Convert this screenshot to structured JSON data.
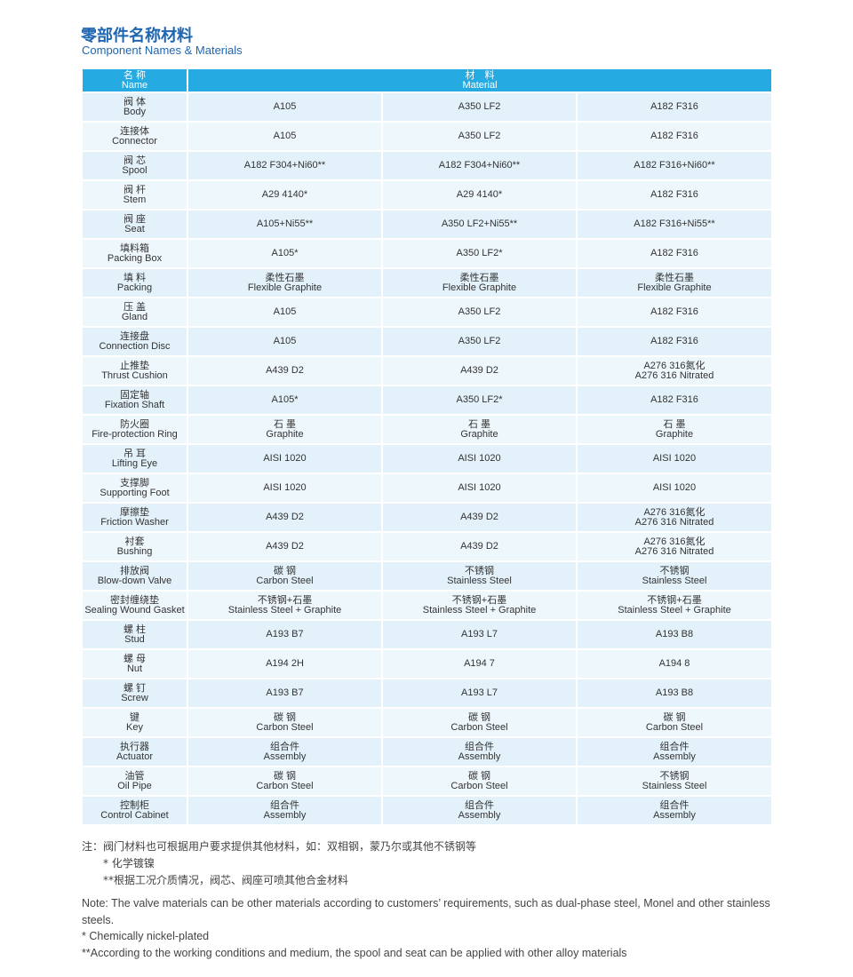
{
  "header": {
    "title": "零部件名称材料",
    "subtitle": "Component Names & Materials"
  },
  "table": {
    "head": {
      "name": [
        "名 称",
        "Name"
      ],
      "material": [
        "材　料",
        "Material"
      ]
    },
    "rows": [
      {
        "name": [
          "阀 体",
          "Body"
        ],
        "cells": [
          [
            "A105"
          ],
          [
            "A350 LF2"
          ],
          [
            "A182 F316"
          ]
        ]
      },
      {
        "name": [
          "连接体",
          "Connector"
        ],
        "cells": [
          [
            "A105"
          ],
          [
            "A350 LF2"
          ],
          [
            "A182 F316"
          ]
        ]
      },
      {
        "name": [
          "阀 芯",
          "Spool"
        ],
        "cells": [
          [
            "A182 F304+Ni60**"
          ],
          [
            "A182 F304+Ni60**"
          ],
          [
            "A182 F316+Ni60**"
          ]
        ]
      },
      {
        "name": [
          "阀 杆",
          "Stem"
        ],
        "cells": [
          [
            "A29 4140*"
          ],
          [
            "A29 4140*"
          ],
          [
            "A182 F316"
          ]
        ]
      },
      {
        "name": [
          "阀 座",
          "Seat"
        ],
        "cells": [
          [
            "A105+Ni55**"
          ],
          [
            "A350 LF2+Ni55**"
          ],
          [
            "A182 F316+Ni55**"
          ]
        ]
      },
      {
        "name": [
          "填料箱",
          "Packing Box"
        ],
        "cells": [
          [
            "A105*"
          ],
          [
            "A350 LF2*"
          ],
          [
            "A182 F316"
          ]
        ]
      },
      {
        "name": [
          "填 料",
          "Packing"
        ],
        "cells": [
          [
            "柔性石墨",
            "Flexible Graphite"
          ],
          [
            "柔性石墨",
            "Flexible Graphite"
          ],
          [
            "柔性石墨",
            "Flexible Graphite"
          ]
        ]
      },
      {
        "name": [
          "压 盖",
          "Gland"
        ],
        "cells": [
          [
            "A105"
          ],
          [
            "A350 LF2"
          ],
          [
            "A182 F316"
          ]
        ]
      },
      {
        "name": [
          "连接盘",
          "Connection Disc"
        ],
        "cells": [
          [
            "A105"
          ],
          [
            "A350 LF2"
          ],
          [
            "A182 F316"
          ]
        ]
      },
      {
        "name": [
          "止推垫",
          "Thrust Cushion"
        ],
        "cells": [
          [
            "A439 D2"
          ],
          [
            "A439 D2"
          ],
          [
            "A276 316氮化",
            "A276 316 Nitrated"
          ]
        ]
      },
      {
        "name": [
          "固定轴",
          "Fixation Shaft"
        ],
        "cells": [
          [
            "A105*"
          ],
          [
            "A350 LF2*"
          ],
          [
            "A182 F316"
          ]
        ]
      },
      {
        "name": [
          "防火圈",
          "Fire-protection Ring"
        ],
        "cells": [
          [
            "石 墨",
            "Graphite"
          ],
          [
            "石 墨",
            "Graphite"
          ],
          [
            "石 墨",
            "Graphite"
          ]
        ]
      },
      {
        "name": [
          "吊 耳",
          "Lifting Eye"
        ],
        "cells": [
          [
            "AISI 1020"
          ],
          [
            "AISI 1020"
          ],
          [
            "AISI 1020"
          ]
        ]
      },
      {
        "name": [
          "支撑脚",
          "Supporting Foot"
        ],
        "cells": [
          [
            "AISI 1020"
          ],
          [
            "AISI 1020"
          ],
          [
            "AISI 1020"
          ]
        ]
      },
      {
        "name": [
          "摩擦垫",
          "Friction Washer"
        ],
        "cells": [
          [
            "A439 D2"
          ],
          [
            "A439 D2"
          ],
          [
            "A276 316氮化",
            "A276 316 Nitrated"
          ]
        ]
      },
      {
        "name": [
          "衬套",
          "Bushing"
        ],
        "cells": [
          [
            "A439 D2"
          ],
          [
            "A439 D2"
          ],
          [
            "A276 316氮化",
            "A276 316 Nitrated"
          ]
        ]
      },
      {
        "name": [
          "排放阀",
          "Blow-down Valve"
        ],
        "cells": [
          [
            "碳 钢",
            "Carbon Steel"
          ],
          [
            "不锈钢",
            "Stainless Steel"
          ],
          [
            "不锈钢",
            "Stainless Steel"
          ]
        ]
      },
      {
        "name": [
          "密封缠绕垫",
          "Sealing Wound Gasket"
        ],
        "cells": [
          [
            "不锈钢+石墨",
            "Stainless Steel + Graphite"
          ],
          [
            "不锈钢+石墨",
            "Stainless Steel + Graphite"
          ],
          [
            "不锈钢+石墨",
            "Stainless Steel + Graphite"
          ]
        ]
      },
      {
        "name": [
          "螺 柱",
          "Stud"
        ],
        "cells": [
          [
            "A193 B7"
          ],
          [
            "A193 L7"
          ],
          [
            "A193 B8"
          ]
        ]
      },
      {
        "name": [
          "螺 母",
          "Nut"
        ],
        "cells": [
          [
            "A194 2H"
          ],
          [
            "A194 7"
          ],
          [
            "A194 8"
          ]
        ]
      },
      {
        "name": [
          "螺 钉",
          "Screw"
        ],
        "cells": [
          [
            "A193 B7"
          ],
          [
            "A193 L7"
          ],
          [
            "A193 B8"
          ]
        ]
      },
      {
        "name": [
          "键",
          "Key"
        ],
        "cells": [
          [
            "碳 钢",
            "Carbon Steel"
          ],
          [
            "碳 钢",
            "Carbon Steel"
          ],
          [
            "碳 钢",
            "Carbon Steel"
          ]
        ]
      },
      {
        "name": [
          "执行器",
          "Actuator"
        ],
        "cells": [
          [
            "组合件",
            "Assembly"
          ],
          [
            "组合件",
            "Assembly"
          ],
          [
            "组合件",
            "Assembly"
          ]
        ]
      },
      {
        "name": [
          "油管",
          "Oil Pipe"
        ],
        "cells": [
          [
            "碳 钢",
            "Carbon Steel"
          ],
          [
            "碳 钢",
            "Carbon Steel"
          ],
          [
            "不锈钢",
            "Stainless Steel"
          ]
        ]
      },
      {
        "name": [
          "控制柜",
          "Control Cabinet"
        ],
        "cells": [
          [
            "组合件",
            "Assembly"
          ],
          [
            "组合件",
            "Assembly"
          ],
          [
            "组合件",
            "Assembly"
          ]
        ]
      }
    ]
  },
  "notes": {
    "zh": [
      "注：阀门材料也可根据用户要求提供其他材料，如：双相钢，蒙乃尔或其他不锈钢等",
      "* 化学镀镍",
      "**根据工况介质情况，阀芯、阀座可喷其他合金材料"
    ],
    "en": [
      "Note: The valve materials can be other materials according to customers’ requirements, such as dual-phase steel, Monel and other stainless steels.",
      "* Chemically nickel-plated",
      "**According to the working conditions and medium, the spool and seat can be applied with other alloy materials"
    ]
  }
}
